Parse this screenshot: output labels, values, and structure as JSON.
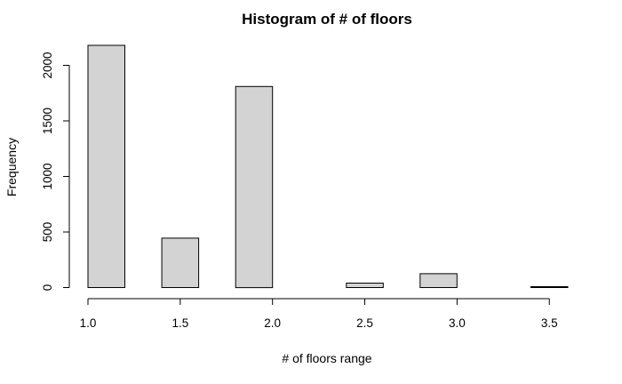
{
  "chart_data": {
    "type": "bar",
    "title": "Histogram of # of floors",
    "xlabel": "# of floors range",
    "ylabel": "Frequency",
    "xlim": [
      1.0,
      3.6
    ],
    "ylim": [
      0,
      2200
    ],
    "x_ticks": [
      1.0,
      1.5,
      2.0,
      2.5,
      3.0,
      3.5
    ],
    "x_tick_labels": [
      "1.0",
      "1.5",
      "2.0",
      "2.5",
      "3.0",
      "3.5"
    ],
    "y_ticks": [
      0,
      500,
      1000,
      1500,
      2000
    ],
    "y_tick_labels": [
      "0",
      "500",
      "1000",
      "1500",
      "2000"
    ],
    "bins": [
      {
        "start": 1.0,
        "end": 1.2,
        "value": 2180
      },
      {
        "start": 1.2,
        "end": 1.4,
        "value": 0
      },
      {
        "start": 1.4,
        "end": 1.6,
        "value": 445
      },
      {
        "start": 1.6,
        "end": 1.8,
        "value": 0
      },
      {
        "start": 1.8,
        "end": 2.0,
        "value": 1810
      },
      {
        "start": 2.0,
        "end": 2.2,
        "value": 0
      },
      {
        "start": 2.2,
        "end": 2.4,
        "value": 0
      },
      {
        "start": 2.4,
        "end": 2.6,
        "value": 40
      },
      {
        "start": 2.6,
        "end": 2.8,
        "value": 0
      },
      {
        "start": 2.8,
        "end": 3.0,
        "value": 125
      },
      {
        "start": 3.0,
        "end": 3.2,
        "value": 0
      },
      {
        "start": 3.2,
        "end": 3.4,
        "value": 0
      },
      {
        "start": 3.4,
        "end": 3.6,
        "value": 8
      }
    ],
    "bar_color": "#d3d3d3",
    "bar_border_color": "#000000",
    "grid": false,
    "legend": "none"
  }
}
